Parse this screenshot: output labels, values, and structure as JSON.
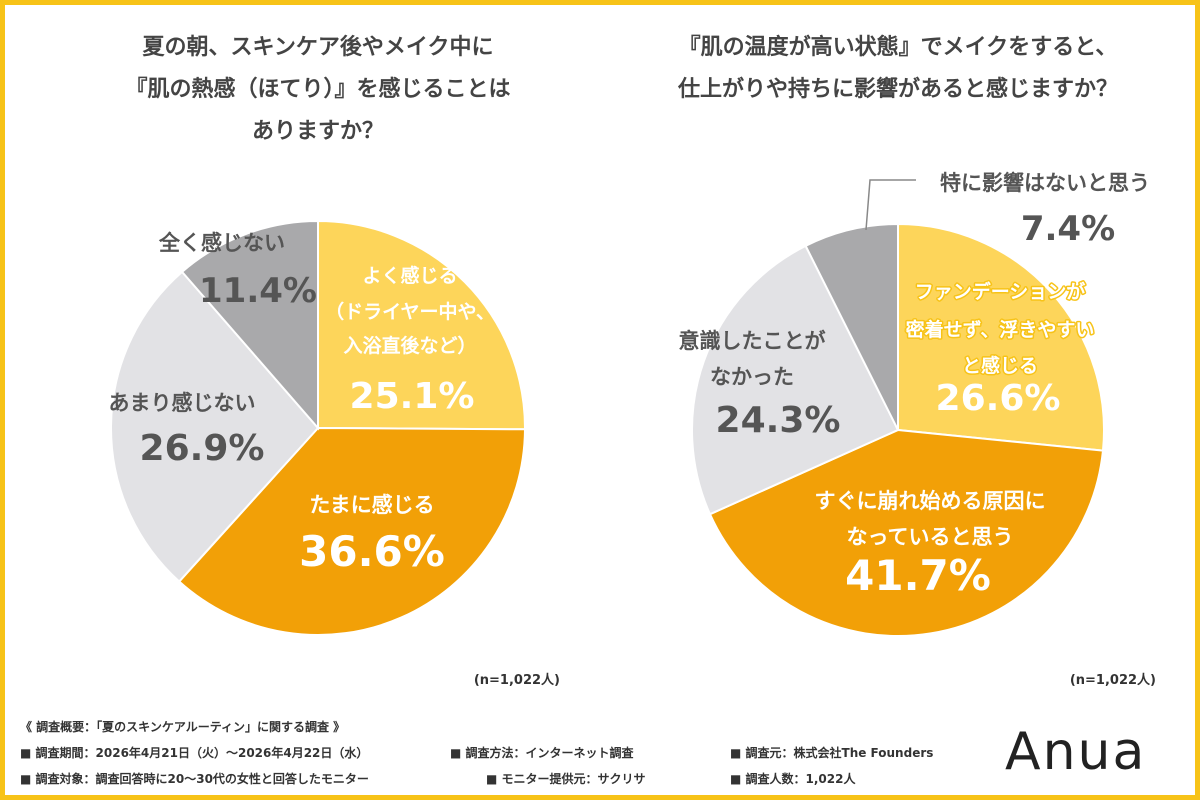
{
  "colors": {
    "frame": "#f7c318",
    "light_yellow": "#fdd55a",
    "orange": "#f2a007",
    "light_gray": "#e2e2e5",
    "mid_gray": "#a9a9ab",
    "dark_text": "#555555",
    "white_text": "#ffffff",
    "yellow_text": "#f7c318"
  },
  "chart_data": [
    {
      "type": "pie",
      "title": "夏の朝、スキンケア後やメイク中に『肌の熱感（ほてり）』を感じることはありますか？",
      "title_lines": [
        "夏の朝、スキンケア後やメイク中に",
        "『肌の熱感（ほてり）』を感じることは",
        "ありますか？"
      ],
      "sample": "(n=1,022人)",
      "slices": [
        {
          "label_lines": [
            "よく感じる",
            "（ドライヤー中や、",
            "入浴直後など）"
          ],
          "value": 25.1,
          "value_label": "25.1%"
        },
        {
          "label_lines": [
            "たまに感じる"
          ],
          "value": 36.6,
          "value_label": "36.6%"
        },
        {
          "label_lines": [
            "あまり感じない"
          ],
          "value": 26.9,
          "value_label": "26.9%"
        },
        {
          "label_lines": [
            "全く感じない"
          ],
          "value": 11.4,
          "value_label": "11.4%"
        }
      ]
    },
    {
      "type": "pie",
      "title": "『肌の温度が高い状態』でメイクをすると、仕上がりや持ちに影響があると感じますか？",
      "title_lines": [
        "『肌の温度が高い状態』でメイクをすると、",
        "仕上がりや持ちに影響があると感じますか？"
      ],
      "sample": "(n=1,022人)",
      "slices": [
        {
          "label_lines": [
            "ファンデーションが",
            "密着せず、浮きやすい",
            "と感じる"
          ],
          "value": 26.6,
          "value_label": "26.6%"
        },
        {
          "label_lines": [
            "すぐに崩れ始める原因に",
            "なっていると思う"
          ],
          "value": 41.7,
          "value_label": "41.7%"
        },
        {
          "label_lines": [
            "意識したことが",
            "なかった"
          ],
          "value": 24.3,
          "value_label": "24.3%"
        },
        {
          "label_lines": [
            "特に影響はないと思う"
          ],
          "value": 7.4,
          "value_label": "7.4%"
        }
      ]
    }
  ],
  "footer": {
    "overview": "《 調査概要：「夏のスキンケアルーティン」に関する調査 》",
    "period": "■ 調査期間：2026年4月21日（火）〜2026年4月22日（水）",
    "method": "■ 調査方法：インターネット調査",
    "organizer": "■ 調査元：株式会社The Founders",
    "target": "■ 調査対象：調査回答時に20〜30代の女性と回答したモニター",
    "provider": "■ モニター提供元：サクリサ",
    "respondents": "■ 調査人数：1,022人"
  },
  "brand": "Anua"
}
